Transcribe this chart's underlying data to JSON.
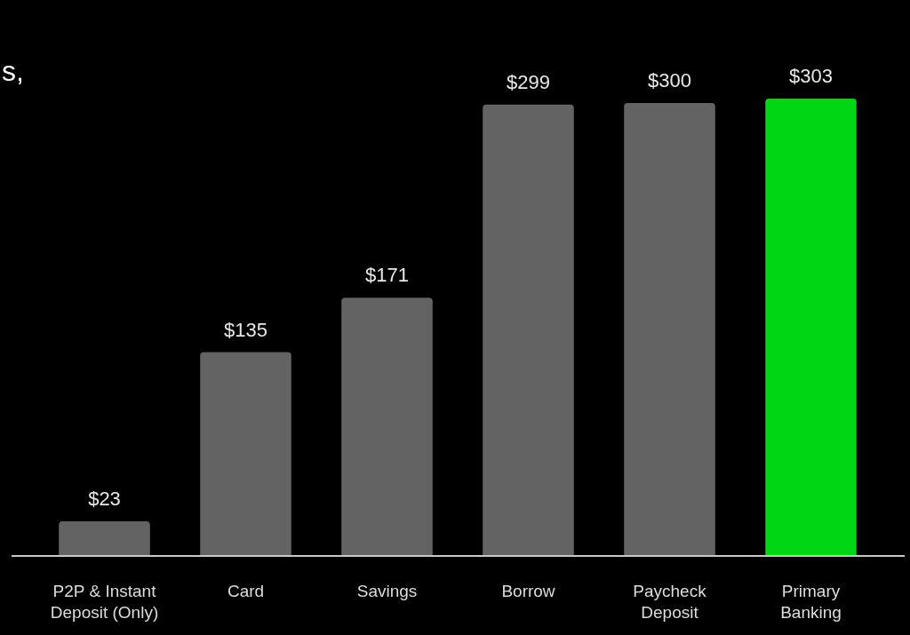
{
  "chart_data": {
    "type": "bar",
    "title": "s,",
    "categories": [
      "P2P & Instant Deposit (Only)",
      "Card",
      "Savings",
      "Borrow",
      "Paycheck Deposit",
      "Primary Banking"
    ],
    "values": [
      23,
      135,
      171,
      299,
      300,
      303
    ],
    "colors": [
      "#636363",
      "#636363",
      "#636363",
      "#636363",
      "#636363",
      "#00d614"
    ],
    "value_labels": [
      "$23",
      "$135",
      "$171",
      "$299",
      "$300",
      "$303"
    ]
  }
}
